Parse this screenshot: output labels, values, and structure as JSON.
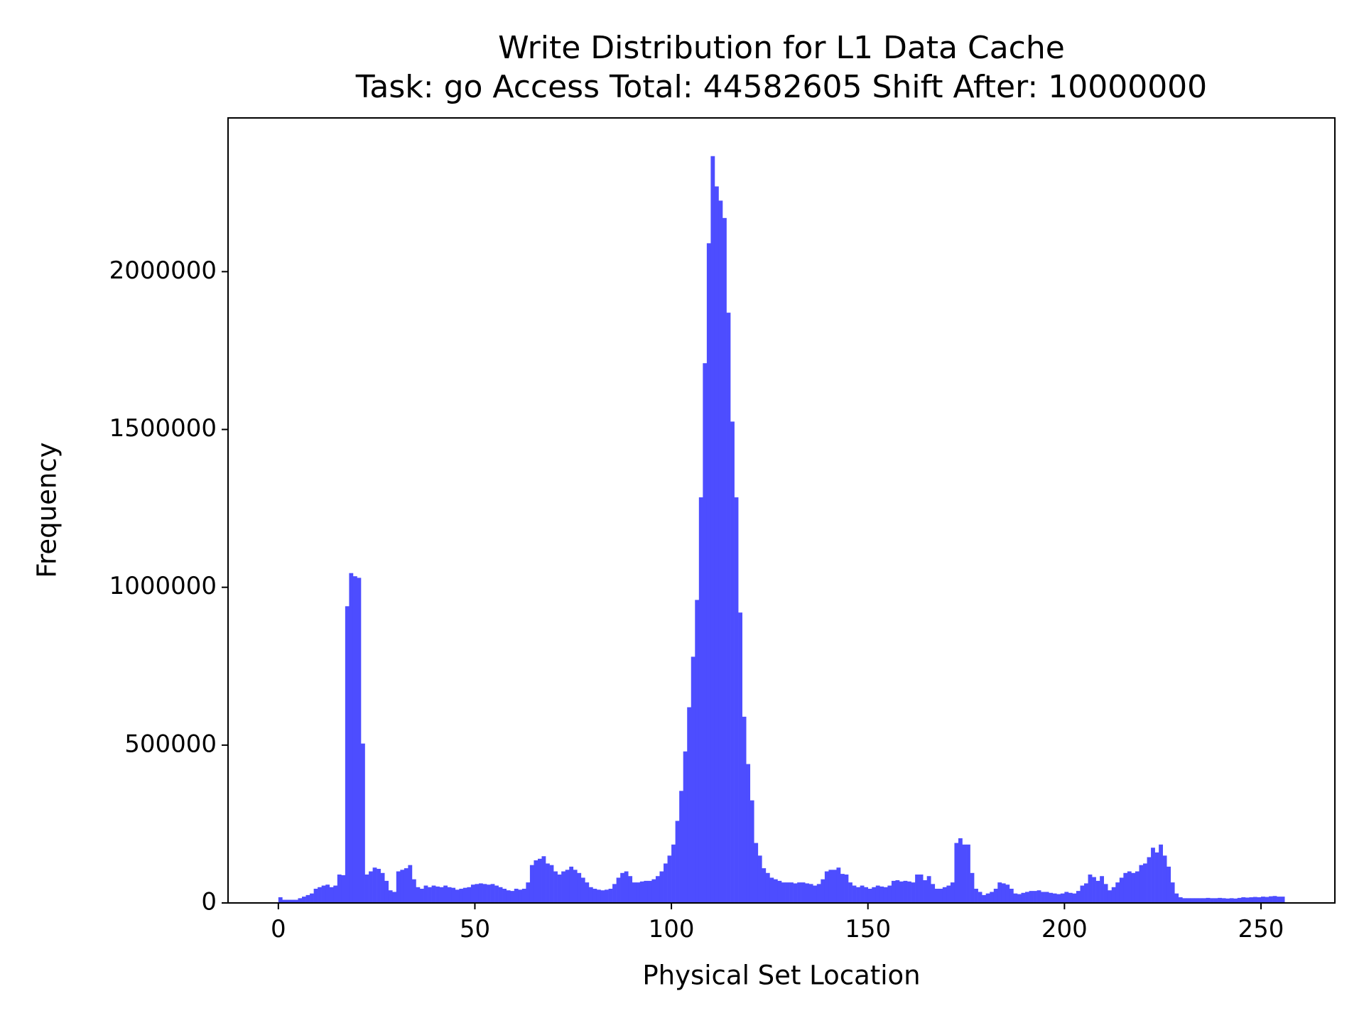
{
  "chart_data": {
    "type": "histogram",
    "title": "Write Distribution for L1 Data Cache",
    "subtitle": "Task: go Access Total: 44582605 Shift After: 10000000",
    "xlabel": "Physical Set Location",
    "ylabel": "Frequency",
    "color": "#4d4dff",
    "xlim": [
      -12.8,
      268.8
    ],
    "ylim": [
      0,
      2487000
    ],
    "xticks": [
      0,
      50,
      100,
      150,
      200,
      250
    ],
    "yticks": [
      0,
      500000,
      1000000,
      1500000,
      2000000
    ],
    "bins": [
      0,
      1,
      2,
      3,
      4,
      5,
      6,
      7,
      8,
      9,
      10,
      11,
      12,
      13,
      14,
      15,
      16,
      17,
      18,
      19,
      20,
      21,
      22,
      23,
      24,
      25,
      26,
      27,
      28,
      29,
      30,
      31,
      32,
      33,
      34,
      35,
      36,
      37,
      38,
      39,
      40,
      41,
      42,
      43,
      44,
      45,
      46,
      47,
      48,
      49,
      50,
      51,
      52,
      53,
      54,
      55,
      56,
      57,
      58,
      59,
      60,
      61,
      62,
      63,
      64,
      65,
      66,
      67,
      68,
      69,
      70,
      71,
      72,
      73,
      74,
      75,
      76,
      77,
      78,
      79,
      80,
      81,
      82,
      83,
      84,
      85,
      86,
      87,
      88,
      89,
      90,
      91,
      92,
      93,
      94,
      95,
      96,
      97,
      98,
      99,
      100,
      101,
      102,
      103,
      104,
      105,
      106,
      107,
      108,
      109,
      110,
      111,
      112,
      113,
      114,
      115,
      116,
      117,
      118,
      119,
      120,
      121,
      122,
      123,
      124,
      125,
      126,
      127,
      128,
      129,
      130,
      131,
      132,
      133,
      134,
      135,
      136,
      137,
      138,
      139,
      140,
      141,
      142,
      143,
      144,
      145,
      146,
      147,
      148,
      149,
      150,
      151,
      152,
      153,
      154,
      155,
      156,
      157,
      158,
      159,
      160,
      161,
      162,
      163,
      164,
      165,
      166,
      167,
      168,
      169,
      170,
      171,
      172,
      173,
      174,
      175,
      176,
      177,
      178,
      179,
      180,
      181,
      182,
      183,
      184,
      185,
      186,
      187,
      188,
      189,
      190,
      191,
      192,
      193,
      194,
      195,
      196,
      197,
      198,
      199,
      200,
      201,
      202,
      203,
      204,
      205,
      206,
      207,
      208,
      209,
      210,
      211,
      212,
      213,
      214,
      215,
      216,
      217,
      218,
      219,
      220,
      221,
      222,
      223,
      224,
      225,
      226,
      227,
      228,
      229,
      230,
      231,
      232,
      233,
      234,
      235,
      236,
      237,
      238,
      239,
      240,
      241,
      242,
      243,
      244,
      245,
      246,
      247,
      248,
      249,
      250,
      251,
      252,
      253,
      254,
      255,
      256
    ],
    "counts": [
      18000,
      10000,
      10000,
      10000,
      10000,
      15000,
      20000,
      25000,
      30000,
      45000,
      50000,
      55000,
      58000,
      50000,
      55000,
      90000,
      88000,
      940000,
      1045000,
      1035000,
      1030000,
      505000,
      90000,
      100000,
      112000,
      108000,
      95000,
      70000,
      40000,
      35000,
      100000,
      105000,
      110000,
      120000,
      75000,
      50000,
      45000,
      55000,
      50000,
      55000,
      52000,
      50000,
      55000,
      50000,
      48000,
      42000,
      45000,
      48000,
      50000,
      58000,
      60000,
      62000,
      60000,
      58000,
      60000,
      55000,
      50000,
      45000,
      40000,
      38000,
      45000,
      42000,
      45000,
      65000,
      120000,
      135000,
      140000,
      148000,
      125000,
      120000,
      100000,
      90000,
      100000,
      105000,
      115000,
      105000,
      95000,
      80000,
      65000,
      50000,
      45000,
      42000,
      40000,
      42000,
      45000,
      60000,
      80000,
      95000,
      100000,
      85000,
      65000,
      65000,
      68000,
      70000,
      70000,
      75000,
      85000,
      100000,
      125000,
      150000,
      185000,
      260000,
      355000,
      480000,
      620000,
      780000,
      960000,
      1285000,
      1710000,
      2090000,
      2366000,
      2270000,
      2225000,
      2170000,
      1870000,
      1525000,
      1285000,
      920000,
      590000,
      440000,
      325000,
      190000,
      150000,
      110000,
      95000,
      80000,
      75000,
      70000,
      65000,
      65000,
      65000,
      62000,
      65000,
      65000,
      62000,
      60000,
      55000,
      60000,
      75000,
      100000,
      105000,
      105000,
      112000,
      92000,
      90000,
      65000,
      55000,
      50000,
      55000,
      50000,
      45000,
      50000,
      55000,
      52000,
      50000,
      55000,
      70000,
      72000,
      68000,
      70000,
      68000,
      65000,
      90000,
      90000,
      72000,
      85000,
      60000,
      45000,
      45000,
      50000,
      55000,
      65000,
      190000,
      205000,
      185000,
      185000,
      95000,
      45000,
      35000,
      25000,
      30000,
      35000,
      45000,
      65000,
      62000,
      58000,
      45000,
      30000,
      28000,
      32000,
      35000,
      38000,
      38000,
      40000,
      35000,
      35000,
      32000,
      30000,
      28000,
      30000,
      35000,
      32000,
      30000,
      38000,
      55000,
      62000,
      90000,
      82000,
      70000,
      85000,
      60000,
      40000,
      50000,
      65000,
      80000,
      95000,
      100000,
      95000,
      100000,
      120000,
      125000,
      145000,
      175000,
      160000,
      185000,
      150000,
      115000,
      65000,
      30000,
      18000,
      15000,
      15000,
      15000,
      15000,
      15000,
      15000,
      16000,
      15000,
      15000,
      16000,
      15000,
      14000,
      15000,
      14000,
      16000,
      18000,
      17000,
      18000,
      19000,
      18000,
      20000,
      19000,
      21000,
      22000,
      20000,
      20000
    ]
  }
}
